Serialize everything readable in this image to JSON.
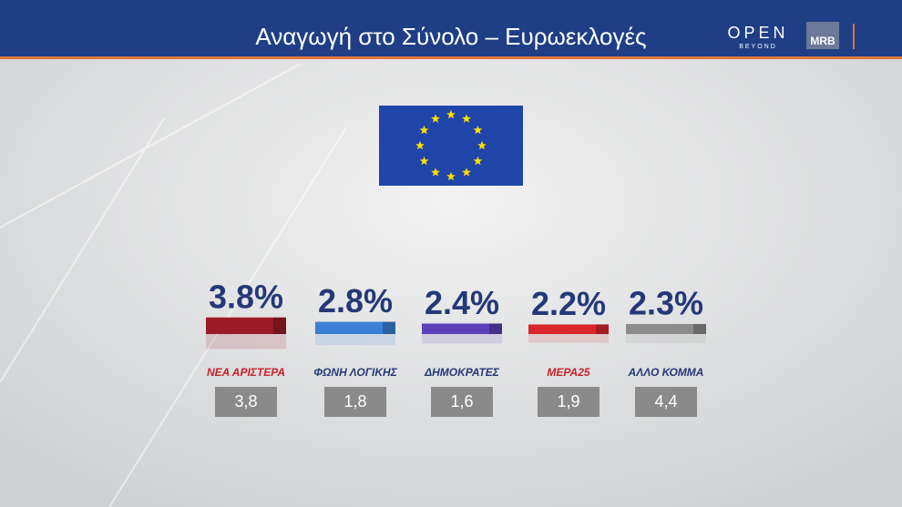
{
  "chart_data": {
    "type": "bar",
    "title": "Αναγωγή στο Σύνολο – Ευρωεκλογές",
    "brand": {
      "channel": "OPEN",
      "tagline": "BEYOND",
      "pollster": "MRB"
    },
    "categories": [
      "ΝΕΑ ΑΡΙΣΤΕΡΑ",
      "ΦΩΝΗ ΛΟΓΙΚΗΣ",
      "ΔΗΜΟΚΡΑΤΕΣ",
      "ΜΕΡΑ25",
      "ΑΛΛΟ ΚΟΜΜΑ"
    ],
    "series": [
      {
        "colors": [
          "#9b1c26",
          "#3b80d6",
          "#5b40b9",
          "#d9262b",
          "#8c8c8c"
        ],
        "values": [
          3.8,
          2.8,
          2.4,
          2.2,
          2.3
        ],
        "value_labels": [
          "3.8%",
          "2.8%",
          "2.4%",
          "2.2%",
          "2.3%"
        ]
      },
      {
        "color": "#8a8a8a",
        "values": [
          3.8,
          1.8,
          1.6,
          1.9,
          4.4
        ],
        "value_labels": [
          "3,8",
          "1,8",
          "1,6",
          "1,9",
          "4,4"
        ]
      }
    ]
  }
}
